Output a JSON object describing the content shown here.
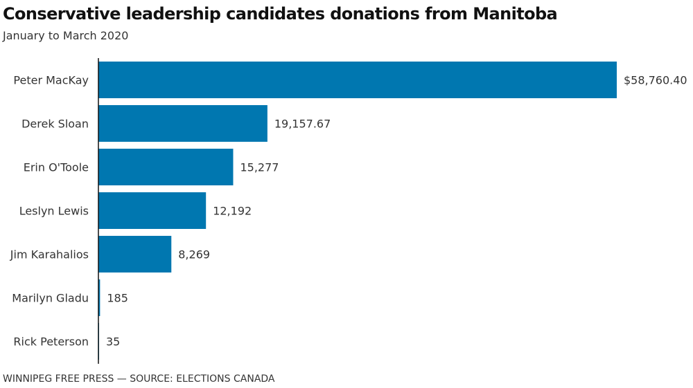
{
  "chart_data": {
    "type": "bar",
    "orientation": "horizontal",
    "title": "Conservative leadership candidates donations from Manitoba",
    "subtitle": "January to March 2020",
    "source": "WINNIPEG FREE PRESS — SOURCE: ELECTIONS CANADA",
    "xlabel": "",
    "ylabel": "",
    "xlim": [
      0,
      58760.4
    ],
    "grid": false,
    "bar_color": "#0077b0",
    "axis_color": "#111111",
    "categories": [
      "Peter MacKay",
      "Derek Sloan",
      "Erin O'Toole",
      "Leslyn Lewis",
      "Jim Karahalios",
      "Marilyn Gladu",
      "Rick Peterson"
    ],
    "values": [
      58760.4,
      19157.67,
      15277,
      12192,
      8269,
      185,
      35
    ],
    "value_labels": [
      "$58,760.40",
      "19,157.67",
      "15,277",
      "12,192",
      "8,269",
      "185",
      "35"
    ]
  }
}
